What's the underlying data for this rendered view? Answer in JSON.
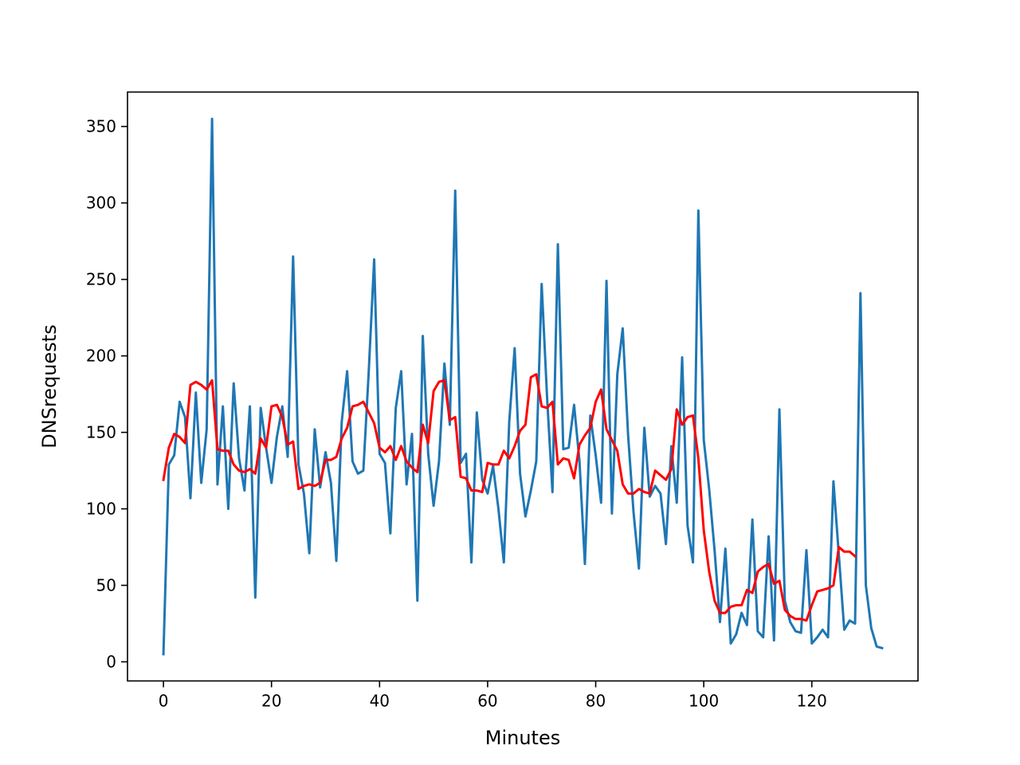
{
  "chart_data": {
    "type": "line",
    "title": "",
    "xlabel": "Minutes",
    "ylabel": "DNSrequests",
    "xlim": [
      -6.65,
      139.65
    ],
    "ylim": [
      -12.5,
      372.5
    ],
    "xticks": [
      0,
      20,
      40,
      60,
      80,
      100,
      120
    ],
    "yticks": [
      0,
      50,
      100,
      150,
      200,
      250,
      300,
      350
    ],
    "grid": false,
    "legend": "none",
    "series": [
      {
        "color": "#1f77b4",
        "x_start": 0,
        "x_step": 1,
        "values": [
          5,
          129,
          135,
          170,
          160,
          107,
          176,
          117,
          152,
          355,
          116,
          167,
          100,
          182,
          133,
          112,
          167,
          42,
          166,
          140,
          117,
          147,
          167,
          134,
          265,
          129,
          110,
          71,
          152,
          114,
          137,
          117,
          66,
          157,
          190,
          131,
          123,
          125,
          190,
          263,
          136,
          130,
          84,
          166,
          190,
          116,
          149,
          40,
          213,
          136,
          102,
          131,
          195,
          155,
          308,
          130,
          136,
          65,
          163,
          119,
          110,
          128,
          100,
          65,
          157,
          205,
          123,
          95,
          112,
          131,
          247,
          173,
          111,
          273,
          139,
          140,
          168,
          131,
          64,
          161,
          135,
          104,
          249,
          97,
          188,
          218,
          148,
          98,
          61,
          153,
          108,
          115,
          110,
          77,
          141,
          104,
          199,
          89,
          65,
          295,
          145,
          113,
          73,
          26,
          74,
          12,
          18,
          32,
          24,
          93,
          20,
          16,
          82,
          14,
          165,
          40,
          26,
          20,
          19,
          73,
          12,
          16,
          21,
          16,
          118,
          70,
          21,
          27,
          25,
          241,
          50,
          22,
          10,
          9
        ]
      },
      {
        "color": "#ff0000",
        "x_start": 0,
        "x_step": 1,
        "values": [
          119,
          140,
          149,
          147,
          143,
          181,
          183,
          181,
          178,
          184,
          139,
          138,
          138,
          129,
          125,
          124,
          126,
          123,
          146,
          140,
          167,
          168,
          160,
          142,
          144,
          113,
          115,
          116,
          115,
          117,
          132,
          132,
          134,
          146,
          153,
          167,
          168,
          170,
          163,
          156,
          140,
          137,
          141,
          132,
          141,
          131,
          127,
          124,
          155,
          143,
          177,
          183,
          184,
          158,
          160,
          121,
          120,
          112,
          112,
          111,
          130,
          129,
          129,
          138,
          133,
          141,
          151,
          155,
          186,
          188,
          167,
          166,
          170,
          129,
          133,
          132,
          120,
          142,
          148,
          153,
          170,
          178,
          152,
          145,
          138,
          116,
          110,
          110,
          113,
          111,
          110,
          125,
          122,
          119,
          126,
          165,
          155,
          160,
          161,
          133,
          86,
          59,
          40,
          32,
          32,
          36,
          37,
          37,
          47,
          45,
          59,
          62,
          64,
          51,
          53,
          34,
          30,
          28,
          28,
          27,
          37,
          46,
          47,
          48,
          50,
          75,
          72,
          72,
          69
        ]
      }
    ]
  }
}
